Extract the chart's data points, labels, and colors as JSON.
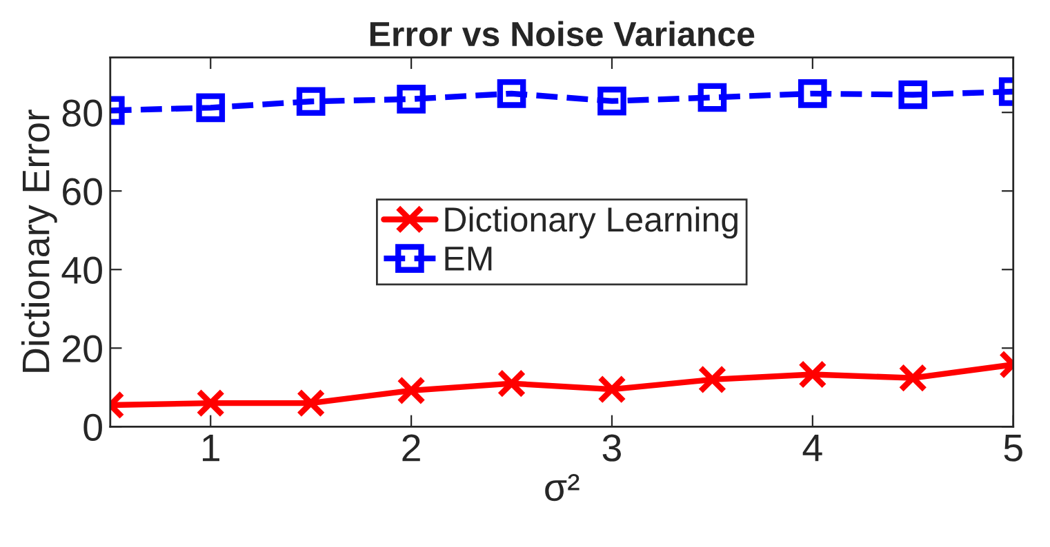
{
  "chart_data": {
    "type": "line",
    "title": "Error vs Noise Variance",
    "xlabel": "σ²",
    "ylabel": "Dictionary Error",
    "x": [
      0.5,
      1,
      1.5,
      2,
      2.5,
      3,
      3.5,
      4,
      4.5,
      5
    ],
    "series": [
      {
        "name": "Dictionary Learning",
        "color": "#ff0000",
        "marker": "cross",
        "line_style": "solid",
        "values": [
          5.5,
          6,
          6,
          9.2,
          11,
          9.5,
          12,
          13.3,
          12.4,
          15.8
        ]
      },
      {
        "name": "EM",
        "color": "#0000ff",
        "marker": "square",
        "line_style": "dashed",
        "values": [
          80.5,
          81.2,
          82.8,
          83.4,
          84.8,
          82.9,
          83.8,
          84.8,
          84.5,
          85.3
        ]
      }
    ],
    "xlim": [
      0.5,
      5
    ],
    "xticks": [
      1,
      2,
      3,
      4,
      5
    ],
    "ylim": [
      0,
      94
    ],
    "yticks": [
      0,
      20,
      40,
      60,
      80
    ],
    "grid": false,
    "legend": "center"
  }
}
